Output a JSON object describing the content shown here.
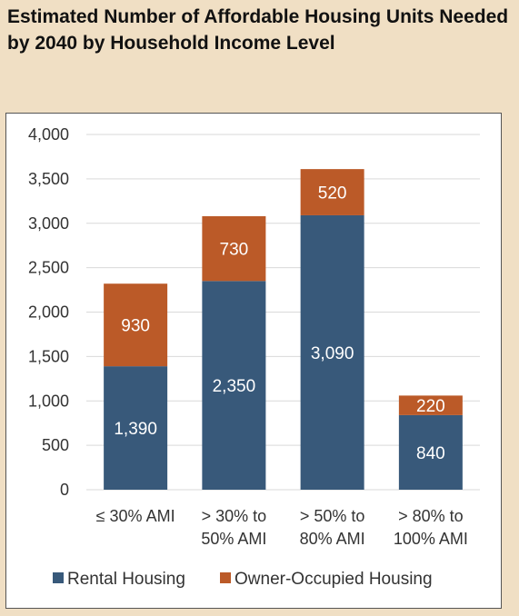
{
  "chart_data": {
    "type": "bar",
    "stacked": true,
    "title": "Estimated Number of Affordable Housing Units Needed by 2040 by Household Income Level",
    "xlabel": "",
    "ylabel": "",
    "categories": [
      [
        "≤ 30% AMI"
      ],
      [
        "> 30% to",
        "50% AMI"
      ],
      [
        "> 50% to",
        "80% AMI"
      ],
      [
        "> 80% to",
        "100% AMI"
      ]
    ],
    "series": [
      {
        "name": "Rental Housing",
        "color": "#38597a",
        "values": [
          1390,
          2350,
          3090,
          840
        ],
        "labels": [
          "1,390",
          "2,350",
          "3,090",
          "840"
        ]
      },
      {
        "name": "Owner-Occupied Housing",
        "color": "#bb5a28",
        "values": [
          930,
          730,
          520,
          220
        ],
        "labels": [
          "930",
          "730",
          "520",
          "220"
        ]
      }
    ],
    "ylim": [
      0,
      4000
    ],
    "yticks": [
      0,
      500,
      1000,
      1500,
      2000,
      2500,
      3000,
      3500,
      4000
    ],
    "ytick_labels": [
      "0",
      "500",
      "1,000",
      "1,500",
      "2,000",
      "2,500",
      "3,000",
      "3,500",
      "4,000"
    ],
    "grid": true,
    "legend": "bottom"
  }
}
